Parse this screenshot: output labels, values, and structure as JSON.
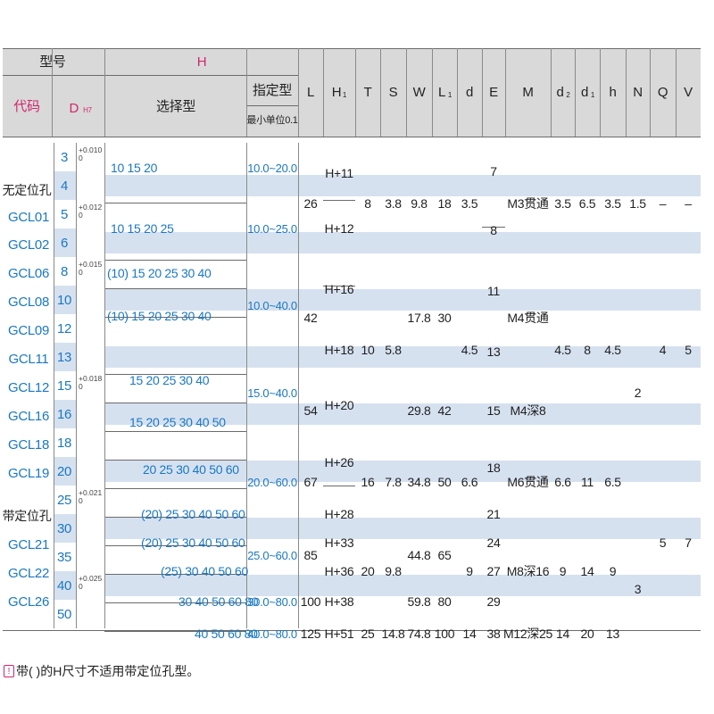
{
  "colors": {
    "band": "#d6e1f0",
    "header_bg": "#d9d9d9",
    "accent": "#1a78c2",
    "note": "#d0266d"
  },
  "header": {
    "model": "型号",
    "h": "H",
    "code": "代码",
    "dh": "D",
    "dh_sub": "H7",
    "select": "选择型",
    "spec": "指定型",
    "spec_min": "最小单位0.1",
    "cols": [
      {
        "key": "L",
        "t": "L",
        "s": ""
      },
      {
        "key": "H1",
        "t": "H",
        "s": "1"
      },
      {
        "key": "T",
        "t": "T",
        "s": ""
      },
      {
        "key": "S",
        "t": "S",
        "s": ""
      },
      {
        "key": "W",
        "t": "W",
        "s": ""
      },
      {
        "key": "L1",
        "t": "L",
        "s": "1"
      },
      {
        "key": "d",
        "t": "d",
        "s": ""
      },
      {
        "key": "E",
        "t": "E",
        "s": ""
      },
      {
        "key": "M",
        "t": "M",
        "s": ""
      },
      {
        "key": "d2",
        "t": "d",
        "s": "2"
      },
      {
        "key": "d1",
        "t": "d",
        "s": "1"
      },
      {
        "key": "h",
        "t": "h",
        "s": ""
      },
      {
        "key": "N",
        "t": "N",
        "s": ""
      },
      {
        "key": "Q",
        "t": "Q",
        "s": ""
      },
      {
        "key": "V",
        "t": "V",
        "s": ""
      }
    ]
  },
  "codes": [
    "无定位孔",
    "GCL01",
    "GCL02",
    "GCL06",
    "GCL08",
    "GCL09",
    "GCL11",
    "GCL12",
    "GCL16",
    "GCL18",
    "GCL19",
    "带定位孔",
    "GCL21",
    "GCL22",
    "GCL26"
  ],
  "rows": [
    {
      "d": "3",
      "sel": "",
      "E": "7"
    },
    {
      "d": "4",
      "sel": "10 15 20",
      "E": "7"
    },
    {
      "d": "5",
      "sel": "",
      "E": "8"
    },
    {
      "d": "6",
      "sel": "10 15 20 25",
      "E": "8"
    },
    {
      "d": "8",
      "sel": "(10) 15 20 25 30 40",
      "E": "11"
    },
    {
      "d": "10",
      "sel": "",
      "E": "11"
    },
    {
      "d": "12",
      "sel": "(10) 15 20 25 30 40",
      "E": "13"
    },
    {
      "d": "13",
      "sel": "",
      "E": "13"
    },
    {
      "d": "15",
      "sel": "15 20 25 30 40",
      "E": "15"
    },
    {
      "d": "16",
      "sel": "15 20 25 30 40 50",
      "E": "15"
    },
    {
      "d": "18",
      "sel": "",
      "E": "18"
    },
    {
      "d": "20",
      "sel": "20 25 30 40 50 60",
      "E": "18"
    },
    {
      "d": "25",
      "sel": "(20) 25 30 40 50 60",
      "E": "21"
    },
    {
      "d": "30",
      "sel": "(20) 25 30 40 50 60",
      "E": "24"
    },
    {
      "d": "35",
      "sel": "(25) 30 40 50 60",
      "E": "27"
    },
    {
      "d": "40",
      "sel": "30 40 50 60 80",
      "E": "29"
    },
    {
      "d": "50",
      "sel": "40 50 60 80",
      "E": "38"
    }
  ],
  "tolerances": [
    "+0.010\n0",
    "+0.012\n0",
    "+0.015\n0",
    "+0.018\n0",
    "+0.021\n0",
    "+0.025\n0"
  ],
  "spec_ranges": [
    "10.0~20.0",
    "10.0~25.0",
    "10.0~40.0",
    "15.0~40.0",
    "20.0~60.0",
    "25.0~60.0",
    "30.0~80.0",
    "40.0~80.0"
  ],
  "values": {
    "L": [
      "26",
      "42",
      "54",
      "67",
      "85",
      "100",
      "125"
    ],
    "H1": [
      "H+11",
      "H+12",
      "H+16",
      "H+18",
      "H+20",
      "H+26",
      "H+28",
      "H+33",
      "H+36",
      "H+38",
      "H+51"
    ],
    "T": [
      "8",
      "10",
      "16",
      "20",
      "25"
    ],
    "S": [
      "3.8",
      "5.8",
      "7.8",
      "9.8",
      "14.8"
    ],
    "W": [
      "9.8",
      "17.8",
      "29.8",
      "34.8",
      "44.8",
      "59.8",
      "74.8"
    ],
    "L1": [
      "18",
      "30",
      "42",
      "50",
      "65",
      "80",
      "100"
    ],
    "d": [
      "3.5",
      "4.5",
      "6.6",
      "9",
      "14"
    ],
    "M": [
      "M3贯通",
      "M4贯通",
      "M4深8",
      "M6贯通",
      "M8深16",
      "M12深25"
    ],
    "d2": [
      "3.5",
      "4.5",
      "6.6",
      "9",
      "14"
    ],
    "d1": [
      "6.5",
      "8",
      "11",
      "14",
      "20"
    ],
    "h": [
      "3.5",
      "4.5",
      "6.5",
      "9",
      "13"
    ],
    "N": [
      "1.5",
      "2",
      "3"
    ],
    "Q": [
      "–",
      "4",
      "5"
    ],
    "V": [
      "–",
      "5",
      "7"
    ]
  },
  "footnote": "带(  )的H尺寸不适用带定位孔型。",
  "footnote_mark": "!"
}
